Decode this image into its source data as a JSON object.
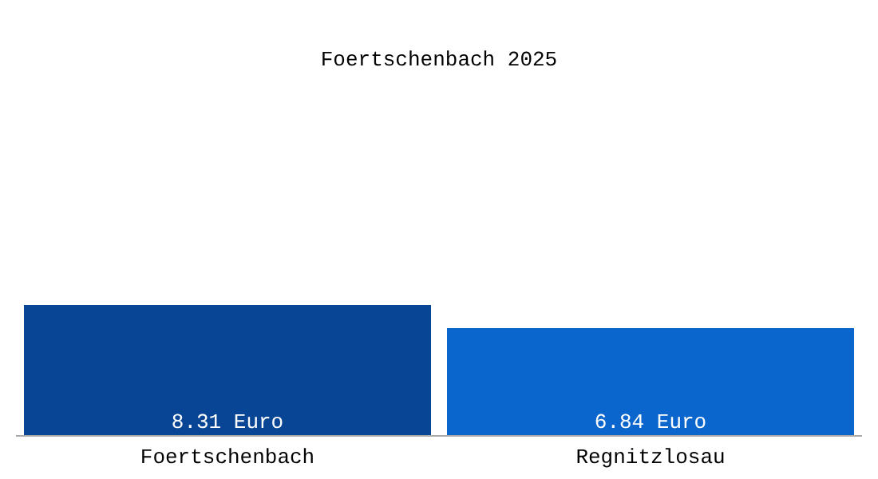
{
  "chart_data": {
    "type": "bar",
    "title": "Foertschenbach 2025",
    "categories": [
      "Foertschenbach",
      "Regnitzlosau"
    ],
    "values": [
      8.31,
      6.84
    ],
    "colors": [
      "#084594",
      "#0a66cc"
    ],
    "value_labels": [
      "8.31 Euro",
      "6.84 Euro"
    ]
  }
}
